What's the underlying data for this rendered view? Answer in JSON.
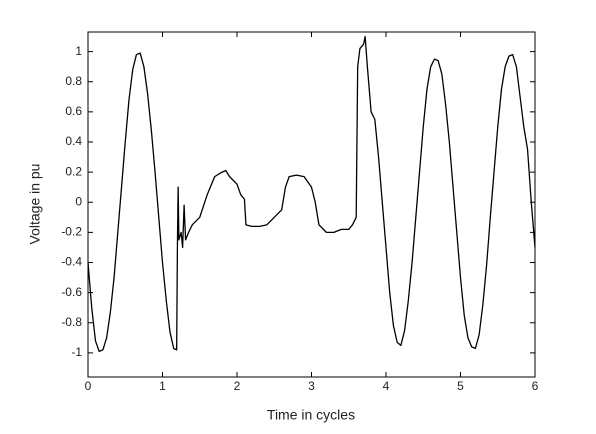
{
  "chart_data": {
    "type": "line",
    "xlabel": "Time in cycles",
    "ylabel": "Voltage in pu",
    "x": [
      0,
      0.05,
      0.1,
      0.15,
      0.2,
      0.25,
      0.3,
      0.35,
      0.4,
      0.45,
      0.5,
      0.55,
      0.6,
      0.65,
      0.7,
      0.75,
      0.8,
      0.85,
      0.9,
      0.95,
      1.0,
      1.05,
      1.1,
      1.15,
      1.19,
      1.2,
      1.21,
      1.22,
      1.25,
      1.27,
      1.29,
      1.31,
      1.35,
      1.4,
      1.5,
      1.6,
      1.7,
      1.8,
      1.85,
      1.9,
      2.0,
      2.05,
      2.1,
      2.12,
      2.2,
      2.3,
      2.4,
      2.5,
      2.6,
      2.65,
      2.7,
      2.8,
      2.9,
      3.0,
      3.05,
      3.1,
      3.2,
      3.3,
      3.4,
      3.5,
      3.55,
      3.6,
      3.62,
      3.65,
      3.7,
      3.72,
      3.75,
      3.8,
      3.85,
      3.9,
      3.95,
      4.0,
      4.05,
      4.1,
      4.15,
      4.2,
      4.25,
      4.3,
      4.35,
      4.4,
      4.45,
      4.5,
      4.55,
      4.6,
      4.65,
      4.7,
      4.75,
      4.8,
      4.85,
      4.9,
      4.95,
      5.0,
      5.05,
      5.1,
      5.15,
      5.2,
      5.25,
      5.3,
      5.35,
      5.4,
      5.45,
      5.5,
      5.55,
      5.6,
      5.65,
      5.7,
      5.75,
      5.8,
      5.85,
      5.9,
      5.95,
      6.0
    ],
    "values": [
      -0.4,
      -0.7,
      -0.92,
      -0.99,
      -0.98,
      -0.9,
      -0.73,
      -0.5,
      -0.2,
      0.1,
      0.4,
      0.68,
      0.88,
      0.98,
      0.99,
      0.9,
      0.72,
      0.48,
      0.2,
      -0.1,
      -0.4,
      -0.65,
      -0.86,
      -0.97,
      -0.98,
      -0.3,
      0.1,
      -0.25,
      -0.2,
      -0.3,
      -0.02,
      -0.25,
      -0.2,
      -0.15,
      -0.1,
      0.05,
      0.17,
      0.2,
      0.21,
      0.17,
      0.12,
      0.05,
      0.02,
      -0.15,
      -0.16,
      -0.16,
      -0.15,
      -0.1,
      -0.05,
      0.1,
      0.17,
      0.18,
      0.17,
      0.1,
      0.0,
      -0.15,
      -0.2,
      -0.2,
      -0.18,
      -0.18,
      -0.15,
      -0.1,
      0.9,
      1.02,
      1.05,
      1.1,
      0.9,
      0.6,
      0.55,
      0.3,
      0.0,
      -0.3,
      -0.6,
      -0.82,
      -0.93,
      -0.95,
      -0.85,
      -0.65,
      -0.4,
      -0.1,
      0.2,
      0.5,
      0.75,
      0.9,
      0.95,
      0.94,
      0.85,
      0.65,
      0.4,
      0.1,
      -0.2,
      -0.5,
      -0.75,
      -0.9,
      -0.96,
      -0.97,
      -0.88,
      -0.68,
      -0.42,
      -0.1,
      0.2,
      0.5,
      0.75,
      0.9,
      0.97,
      0.98,
      0.9,
      0.7,
      0.5,
      0.35,
      0.0,
      -0.3
    ],
    "color": "#000000",
    "xlim": [
      0,
      6
    ],
    "xticks": [
      0,
      1,
      2,
      3,
      4,
      5,
      6
    ],
    "ylim": [
      -1.16,
      1.13
    ],
    "yticks": [
      -1,
      -0.8,
      -0.6,
      -0.4,
      -0.2,
      0,
      0.2,
      0.4,
      0.6,
      0.8,
      1
    ],
    "grid": false
  }
}
